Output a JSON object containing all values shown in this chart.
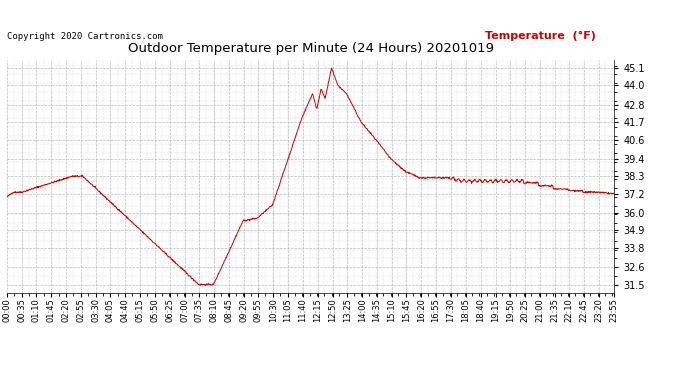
{
  "title": "Outdoor Temperature per Minute (24 Hours) 20201019",
  "copyright_text": "Copyright 2020 Cartronics.com",
  "legend_text": "Temperature  (°F)",
  "line_color": "#cc0000",
  "background_color": "#ffffff",
  "grid_color": "#aaaaaa",
  "yticks": [
    31.5,
    32.6,
    33.8,
    34.9,
    36.0,
    37.2,
    38.3,
    39.4,
    40.6,
    41.7,
    42.8,
    44.0,
    45.1
  ],
  "ylim": [
    31.0,
    45.6
  ],
  "x_tick_labels": [
    "00:00",
    "00:35",
    "01:10",
    "01:45",
    "02:20",
    "02:55",
    "03:30",
    "04:05",
    "04:40",
    "05:15",
    "05:50",
    "06:25",
    "07:00",
    "07:35",
    "08:10",
    "08:45",
    "09:20",
    "09:55",
    "10:30",
    "11:05",
    "11:40",
    "12:15",
    "12:50",
    "13:25",
    "14:00",
    "14:35",
    "15:10",
    "15:45",
    "16:20",
    "16:55",
    "17:30",
    "18:05",
    "18:40",
    "19:15",
    "19:50",
    "20:25",
    "21:00",
    "21:35",
    "22:10",
    "22:45",
    "23:20",
    "23:55"
  ]
}
